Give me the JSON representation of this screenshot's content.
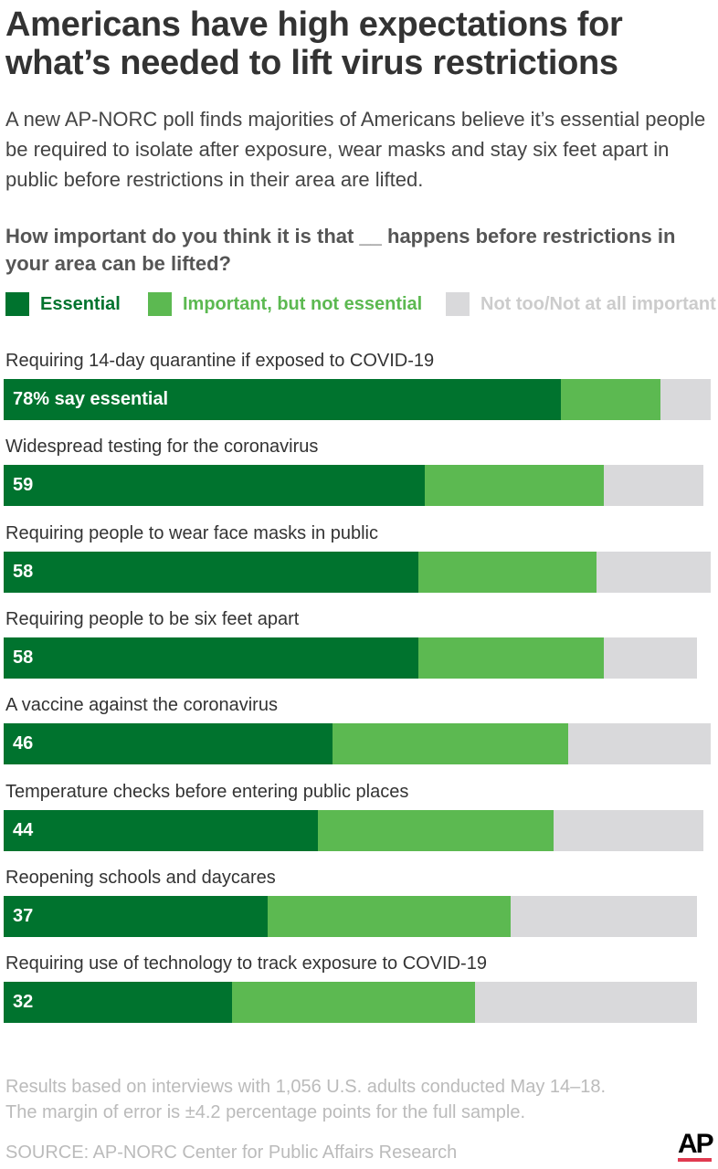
{
  "header": {
    "title_line1": "Americans have high expectations for",
    "title_line2": "what’s needed to lift virus restrictions",
    "subtitle": "A new AP-NORC poll finds majorities of Americans believe it’s essential people be required to isolate after exposure, wear masks and stay six feet apart in public before restrictions in their area are lifted.",
    "question": "How important do you think it is that __ happens before restrictions in your area can be lifted?"
  },
  "chart_data": {
    "type": "bar",
    "orientation": "horizontal-stacked",
    "categories": [
      "Requiring 14-day quarantine if exposed to COVID-19",
      "Widespread testing for the coronavirus",
      "Requiring people to wear face masks in public",
      "Requiring people to be six feet apart",
      "A vaccine against the coronavirus",
      "Temperature checks before entering public places",
      "Reopening schools and daycares",
      "Requiring use of technology to track exposure to COVID-19"
    ],
    "series": [
      {
        "name": "Essential",
        "color": "#00732e",
        "values": [
          78,
          59,
          58,
          58,
          46,
          44,
          37,
          32
        ]
      },
      {
        "name": "Important, but not essential",
        "color": "#5cb951",
        "values": [
          14,
          25,
          25,
          26,
          33,
          33,
          34,
          34
        ]
      },
      {
        "name": "Not too/Not at all important",
        "color": "#d9d9db",
        "values": [
          7,
          14,
          16,
          13,
          20,
          21,
          26,
          31
        ]
      }
    ],
    "data_labels": [
      "78% say essential",
      "59",
      "58",
      "58",
      "46",
      "44",
      "37",
      "32"
    ],
    "xlim": [
      0,
      100
    ],
    "legend_position": "top"
  },
  "footer": {
    "note1": "Results based on interviews with 1,056 U.S. adults conducted May 14–18.",
    "note2": "The margin of error is ±4.2 percentage points for the full sample.",
    "source": "SOURCE: AP-NORC Center for Public Affairs Research",
    "logo": "AP"
  }
}
